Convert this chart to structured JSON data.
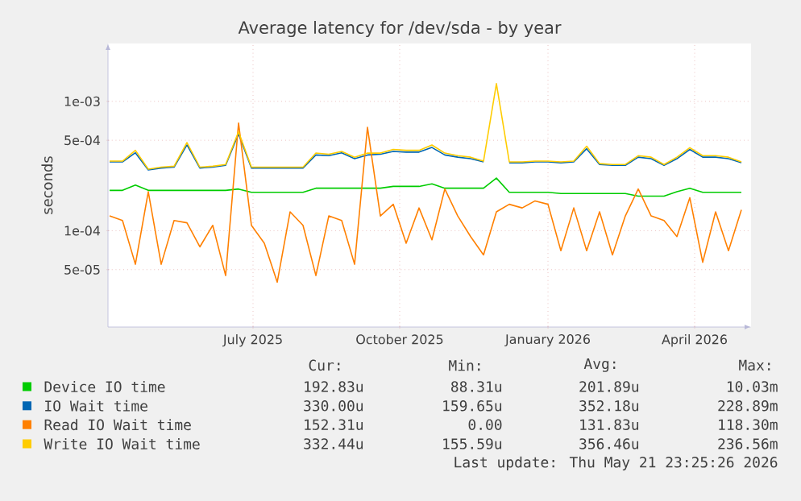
{
  "chart_data": {
    "type": "line",
    "title": "Average latency for /dev/sda - by year",
    "ylabel": "seconds",
    "log": "y",
    "grid": true,
    "legend": "bottom",
    "xlim": [
      "2025-04-17",
      "2026-05-21"
    ],
    "xticks": [
      {
        "value": "2025-07-16",
        "label": "July 2025"
      },
      {
        "value": "2025-10-15",
        "label": "October 2025"
      },
      {
        "value": "2026-01-15",
        "label": "January 2026"
      },
      {
        "value": "2026-04-16",
        "label": "April 2026"
      }
    ],
    "ylim": [
      1.8e-05,
      0.0028
    ],
    "yticks": [
      {
        "value": 5e-05,
        "label": "5e-05"
      },
      {
        "value": 0.0001,
        "label": "1e-04"
      },
      {
        "value": 0.0005,
        "label": "5e-04"
      },
      {
        "value": 0.001,
        "label": "1e-03"
      }
    ],
    "x": [
      "2025-04-18",
      "2025-04-26",
      "2025-05-04",
      "2025-05-12",
      "2025-05-20",
      "2025-05-28",
      "2025-06-05",
      "2025-06-13",
      "2025-06-21",
      "2025-06-29",
      "2025-07-07",
      "2025-07-15",
      "2025-07-23",
      "2025-07-31",
      "2025-08-08",
      "2025-08-16",
      "2025-08-24",
      "2025-09-01",
      "2025-09-09",
      "2025-09-17",
      "2025-09-25",
      "2025-10-03",
      "2025-10-11",
      "2025-10-19",
      "2025-10-27",
      "2025-11-04",
      "2025-11-12",
      "2025-11-20",
      "2025-11-28",
      "2025-12-06",
      "2025-12-14",
      "2025-12-22",
      "2025-12-30",
      "2026-01-07",
      "2026-01-15",
      "2026-01-23",
      "2026-01-31",
      "2026-02-08",
      "2026-02-16",
      "2026-02-24",
      "2026-03-04",
      "2026-03-12",
      "2026-03-20",
      "2026-03-28",
      "2026-04-05",
      "2026-04-13",
      "2026-04-21",
      "2026-04-29",
      "2026-05-07",
      "2026-05-15"
    ],
    "series": [
      {
        "name": "Device IO time",
        "color": "#00cc00",
        "values": [
          0.000205,
          0.000205,
          0.000225,
          0.000205,
          0.000205,
          0.000205,
          0.000205,
          0.000205,
          0.000205,
          0.000205,
          0.00021,
          0.000198,
          0.000198,
          0.000198,
          0.000198,
          0.000198,
          0.000213,
          0.000213,
          0.000213,
          0.000213,
          0.000213,
          0.000213,
          0.00022,
          0.00022,
          0.00022,
          0.00023,
          0.000213,
          0.000213,
          0.000213,
          0.000213,
          0.000255,
          0.000198,
          0.000198,
          0.000198,
          0.000198,
          0.000194,
          0.000194,
          0.000194,
          0.000194,
          0.000194,
          0.000194,
          0.000185,
          0.000185,
          0.000185,
          0.0002,
          0.000213,
          0.000198,
          0.000198,
          0.000198,
          0.000198
        ]
      },
      {
        "name": "IO Wait time",
        "color": "#0066b3",
        "values": [
          0.00034,
          0.00034,
          0.0004,
          0.000295,
          0.000305,
          0.00031,
          0.00046,
          0.000305,
          0.00031,
          0.00032,
          0.00056,
          0.000305,
          0.000305,
          0.000305,
          0.000305,
          0.000305,
          0.000385,
          0.00038,
          0.0004,
          0.00036,
          0.000385,
          0.00039,
          0.00041,
          0.000405,
          0.000405,
          0.00044,
          0.000385,
          0.00037,
          0.00036,
          0.00034,
          null,
          0.000335,
          0.000335,
          0.00034,
          0.00034,
          0.000335,
          0.00034,
          0.00043,
          0.000325,
          0.00032,
          0.00032,
          0.00037,
          0.00036,
          0.00032,
          0.00036,
          0.000425,
          0.00037,
          0.00037,
          0.00036,
          0.000335
        ]
      },
      {
        "name": "Read IO Wait time",
        "color": "#ff8000",
        "values": [
          0.00013,
          0.00012,
          5.5e-05,
          0.0002,
          5.5e-05,
          0.00012,
          0.000115,
          7.5e-05,
          0.00011,
          4.5e-05,
          0.00068,
          0.00011,
          8e-05,
          4e-05,
          0.00014,
          0.00011,
          4.5e-05,
          0.00013,
          0.00012,
          5.5e-05,
          0.00063,
          0.00013,
          0.00016,
          8e-05,
          0.00015,
          8.5e-05,
          0.00021,
          0.00013,
          9e-05,
          6.5e-05,
          0.00014,
          0.00016,
          0.00015,
          0.00017,
          0.00016,
          7e-05,
          0.00015,
          7e-05,
          0.00014,
          6.5e-05,
          0.00013,
          0.00021,
          0.00013,
          0.00012,
          9e-05,
          0.00018,
          5.7e-05,
          0.00014,
          7e-05,
          0.000145
        ]
      },
      {
        "name": "Write IO Wait time",
        "color": "#ffcc00",
        "values": [
          0.000345,
          0.000345,
          0.000418,
          0.000299,
          0.00031,
          0.000315,
          0.00048,
          0.00031,
          0.000315,
          0.000325,
          0.000583,
          0.00031,
          0.00031,
          0.00031,
          0.00031,
          0.00031,
          0.000398,
          0.00039,
          0.00041,
          0.00037,
          0.000398,
          0.000398,
          0.000425,
          0.000418,
          0.000418,
          0.00046,
          0.000398,
          0.00038,
          0.00037,
          0.000345,
          0.00137,
          0.00034,
          0.00034,
          0.000345,
          0.000345,
          0.00034,
          0.000345,
          0.00045,
          0.00033,
          0.000325,
          0.000325,
          0.00038,
          0.00037,
          0.000325,
          0.00037,
          0.000438,
          0.00038,
          0.00038,
          0.00037,
          0.00034
        ]
      }
    ],
    "annotations": [
      "Cur:",
      "Min:",
      "Avg:",
      "Max:",
      "192.83u",
      "88.31u",
      "201.89u",
      "10.03m",
      "330.00u",
      "159.65u",
      "352.18u",
      "228.89m",
      "152.31u",
      "0.00",
      "131.83u",
      "118.30m",
      "332.44u",
      "155.59u",
      "356.46u",
      "236.56m",
      "Last update: Thu May 21 23:25:26 2026"
    ]
  }
}
